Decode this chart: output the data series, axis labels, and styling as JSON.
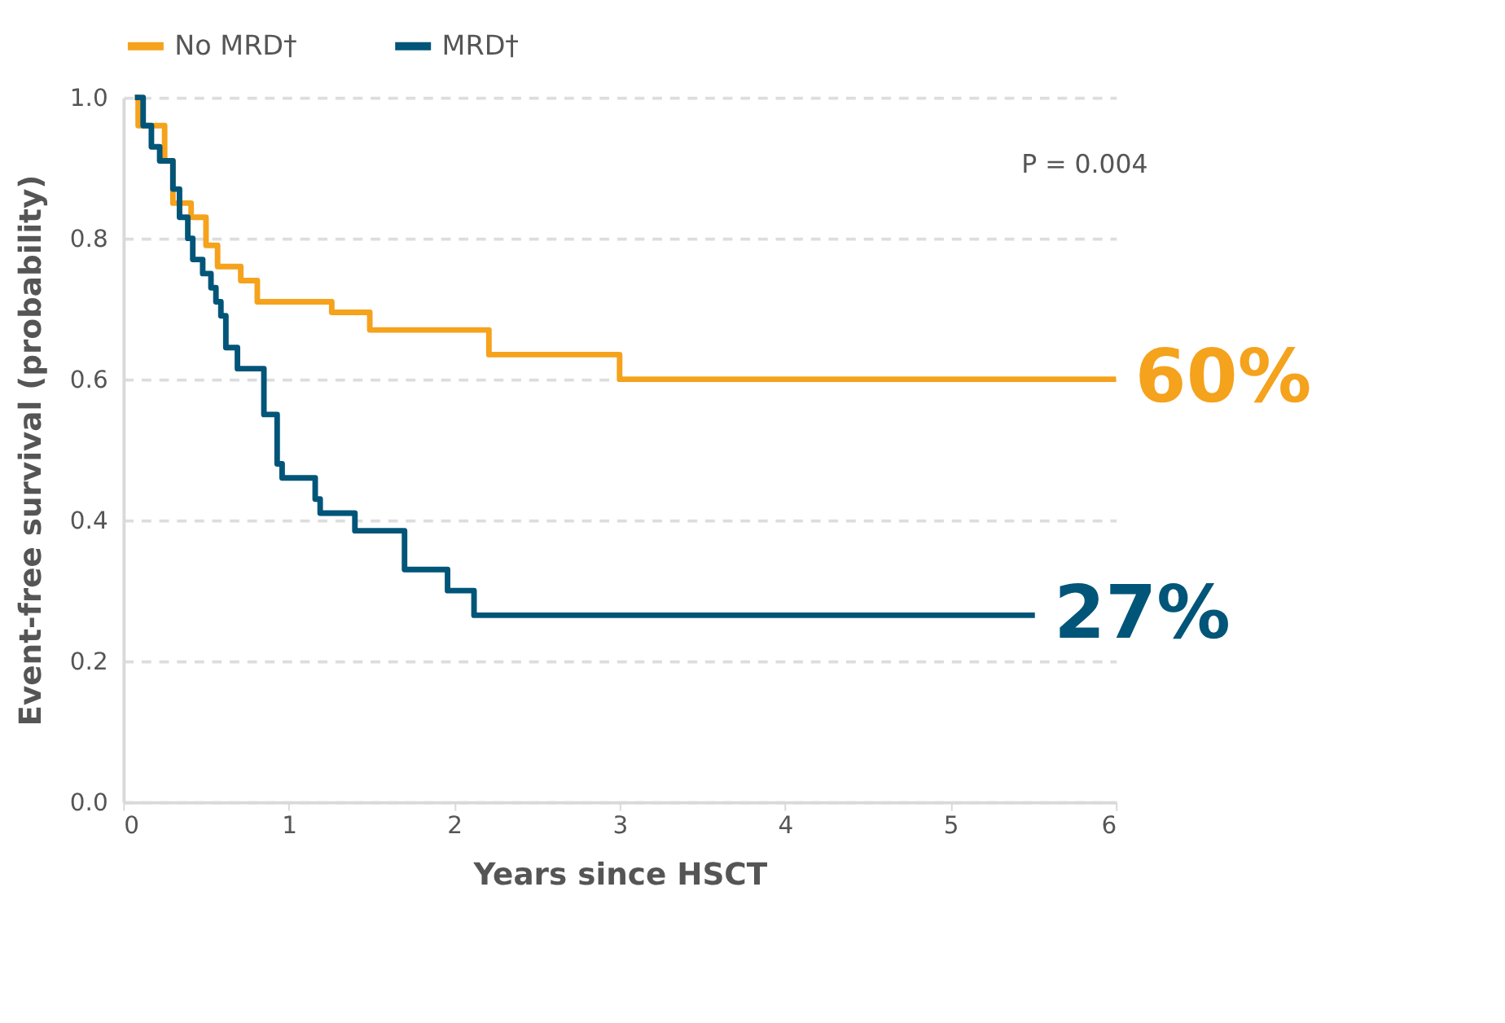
{
  "chart_data": {
    "type": "step",
    "xlabel": "Years since HSCT",
    "ylabel": "Event-free survival (probability)",
    "xlim": [
      0,
      6
    ],
    "xticks": [
      0,
      1,
      2,
      3,
      4,
      5,
      6
    ],
    "ylim": [
      0,
      1
    ],
    "yticks": [
      {
        "value": 0,
        "label": "0.0"
      },
      0.2,
      0.4,
      0.6,
      0.8,
      {
        "value": 1,
        "label": "1.0"
      }
    ],
    "grid": "y",
    "legend": "top left",
    "line_style": "solid",
    "marker": "none",
    "series": [
      {
        "name": "No MRD†",
        "color": "#f5a21c",
        "x": [
          0.07,
          0.09,
          0.25,
          0.3,
          0.41,
          0.5,
          0.57,
          0.71,
          0.81,
          1.26,
          1.49,
          2.21,
          3.0,
          6.0
        ],
        "values": [
          1.0,
          0.96,
          0.91,
          0.85,
          0.83,
          0.79,
          0.76,
          0.74,
          0.71,
          0.695,
          0.67,
          0.635,
          0.6,
          0.6
        ]
      },
      {
        "name": "MRD†",
        "color": "#005578",
        "x": [
          0.07,
          0.12,
          0.17,
          0.22,
          0.3,
          0.34,
          0.39,
          0.42,
          0.48,
          0.53,
          0.56,
          0.59,
          0.62,
          0.69,
          0.85,
          0.93,
          0.96,
          1.16,
          1.19,
          1.4,
          1.7,
          1.96,
          2.12,
          5.51
        ],
        "values": [
          1.0,
          0.96,
          0.93,
          0.91,
          0.87,
          0.83,
          0.8,
          0.77,
          0.75,
          0.73,
          0.71,
          0.69,
          0.645,
          0.615,
          0.55,
          0.48,
          0.46,
          0.43,
          0.41,
          0.385,
          0.33,
          0.3,
          0.265,
          0.265
        ]
      }
    ],
    "annotations": [
      "P = 0.004",
      {
        "text": "60%",
        "x": 6,
        "y": 0.6
      },
      {
        "text": "27%",
        "x": 5.51,
        "y": 0.265
      }
    ]
  }
}
